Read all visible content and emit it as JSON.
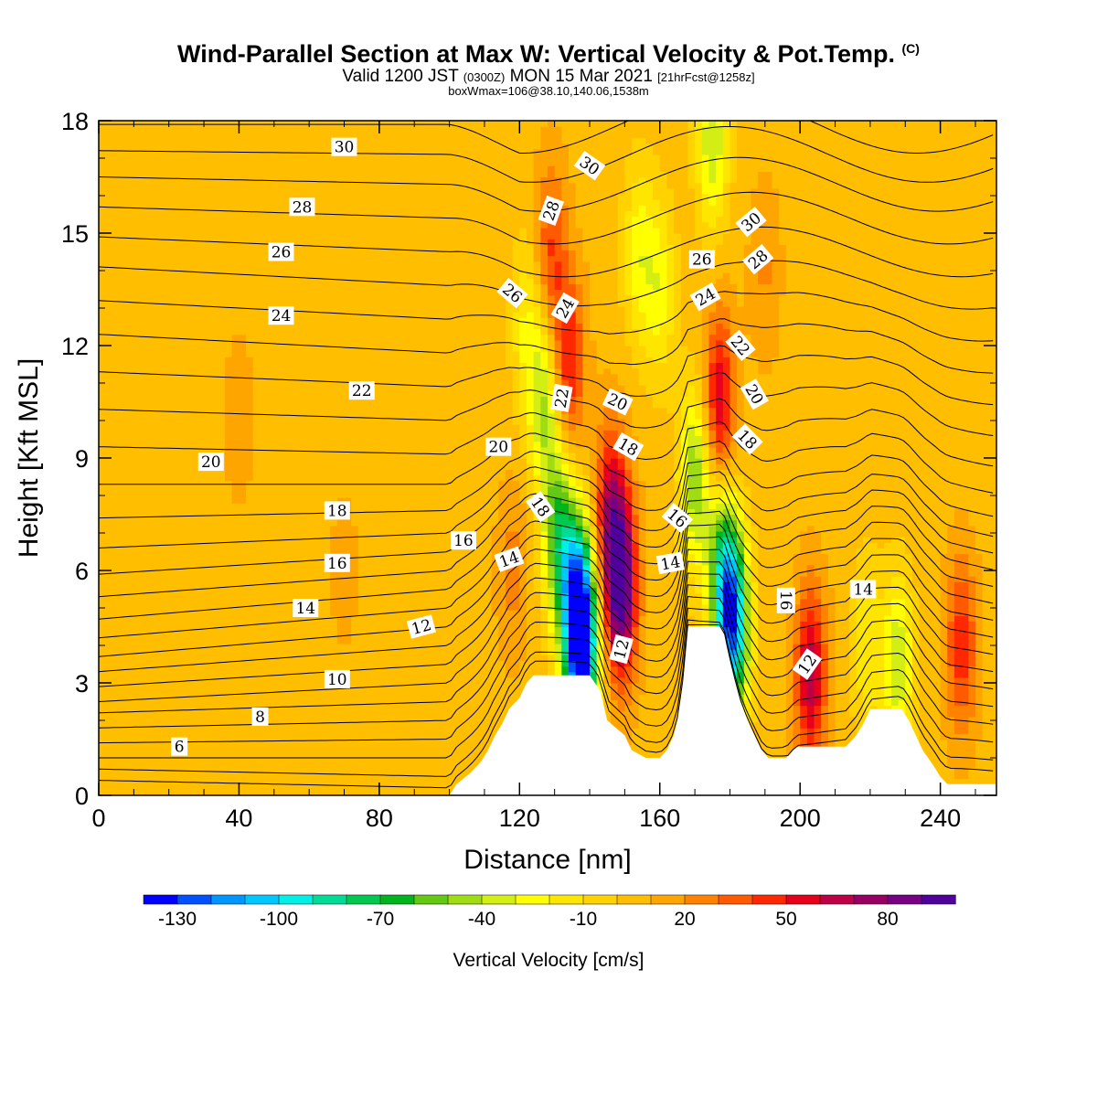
{
  "title": {
    "main": "Wind-Parallel Section at Max W: Vertical Velocity & Pot.Temp.",
    "copyright": "(C)",
    "valid_prefix": "Valid 1200 JST",
    "valid_utc": "(0300Z)",
    "valid_date": "MON 15 Mar 2021",
    "forecast": "[21hrFcst@1258z]",
    "box_max": "boxWmax=106@38.10,140.06,1538m"
  },
  "chart_data": {
    "type": "heatmap",
    "xlabel": "Distance [nm]",
    "ylabel": "Height [Kft MSL]",
    "xlim": [
      0,
      256
    ],
    "ylim": [
      0,
      18
    ],
    "xticks": [
      0,
      40,
      80,
      120,
      160,
      200,
      240
    ],
    "yticks": [
      0,
      3,
      6,
      9,
      12,
      15,
      18
    ],
    "colorbar": {
      "label": "Vertical Velocity [cm/s]",
      "levels": [
        -140,
        -130,
        -120,
        -110,
        -100,
        -90,
        -80,
        -70,
        -60,
        -50,
        -40,
        -30,
        -20,
        -10,
        0,
        10,
        20,
        30,
        40,
        50,
        60,
        70,
        80,
        90
      ],
      "tick_labels": [
        "-130",
        "-100",
        "-70",
        "-40",
        "-10",
        "20",
        "50",
        "80"
      ],
      "colors": [
        "#0000ff",
        "#0050ff",
        "#0096ff",
        "#00c8ff",
        "#00f0e6",
        "#00dc96",
        "#00c850",
        "#00b41e",
        "#64c814",
        "#a0dc14",
        "#d2ee14",
        "#ffff00",
        "#ffe600",
        "#ffd200",
        "#ffbe00",
        "#ffa500",
        "#ff8200",
        "#ff5a00",
        "#ff2800",
        "#e6001e",
        "#be0046",
        "#960064",
        "#780082",
        "#50009b"
      ]
    },
    "terrain": [
      [
        0,
        0
      ],
      [
        100,
        0
      ],
      [
        102,
        0.3
      ],
      [
        106,
        0.6
      ],
      [
        109,
        0.9
      ],
      [
        111,
        1.2
      ],
      [
        113,
        1.6
      ],
      [
        115,
        1.9
      ],
      [
        117,
        2.3
      ],
      [
        120,
        2.6
      ],
      [
        122,
        3.0
      ],
      [
        124,
        3.2
      ],
      [
        140,
        3.2
      ],
      [
        143,
        2.8
      ],
      [
        144,
        2.4
      ],
      [
        145,
        2.0
      ],
      [
        150,
        1.6
      ],
      [
        152,
        1.2
      ],
      [
        156,
        1.0
      ],
      [
        160,
        1.0
      ],
      [
        162,
        1.2
      ],
      [
        164,
        1.6
      ],
      [
        165,
        2.0
      ],
      [
        166,
        2.6
      ],
      [
        167,
        3.4
      ],
      [
        168,
        4.5
      ],
      [
        178,
        4.5
      ],
      [
        179,
        4.0
      ],
      [
        181,
        3.2
      ],
      [
        183,
        2.5
      ],
      [
        185,
        2.0
      ],
      [
        187,
        1.6
      ],
      [
        189,
        1.2
      ],
      [
        191,
        1.0
      ],
      [
        196,
        1.0
      ],
      [
        199,
        1.3
      ],
      [
        213,
        1.3
      ],
      [
        216,
        1.6
      ],
      [
        218,
        1.9
      ],
      [
        220,
        2.3
      ],
      [
        229,
        2.3
      ],
      [
        231,
        2.0
      ],
      [
        233,
        1.6
      ],
      [
        235,
        1.2
      ],
      [
        238,
        0.8
      ],
      [
        240,
        0.5
      ],
      [
        242,
        0.3
      ],
      [
        256,
        0.3
      ]
    ],
    "w_features": [
      {
        "x": 138,
        "z": 3.9,
        "w": -125
      },
      {
        "x": 136,
        "z": 5.2,
        "w": -90
      },
      {
        "x": 131,
        "z": 7.0,
        "w": -65
      },
      {
        "x": 127,
        "z": 10.5,
        "w": -45
      },
      {
        "x": 122,
        "z": 12.5,
        "w": -25
      },
      {
        "x": 149,
        "z": 5.5,
        "w": 88
      },
      {
        "x": 146,
        "z": 7.5,
        "w": 55
      },
      {
        "x": 134,
        "z": 11.5,
        "w": 45
      },
      {
        "x": 129,
        "z": 14.5,
        "w": 35
      },
      {
        "x": 181,
        "z": 4.5,
        "w": -110
      },
      {
        "x": 178,
        "z": 6.0,
        "w": -70
      },
      {
        "x": 170,
        "z": 8.5,
        "w": -55
      },
      {
        "x": 160,
        "z": 13.5,
        "w": -30
      },
      {
        "x": 175,
        "z": 17.5,
        "w": -45
      },
      {
        "x": 177,
        "z": 10.5,
        "w": 55
      },
      {
        "x": 203,
        "z": 3.2,
        "w": 60
      },
      {
        "x": 219,
        "z": 4.0,
        "w": -25
      },
      {
        "x": 228,
        "z": 3.5,
        "w": -45
      },
      {
        "x": 246,
        "z": 4.0,
        "w": 40
      },
      {
        "x": 154,
        "z": 14.5,
        "w": -30
      },
      {
        "x": 190,
        "z": 14.0,
        "w": 15
      },
      {
        "x": 40,
        "z": 10.0,
        "w": 10
      },
      {
        "x": 70,
        "z": 6.0,
        "w": 8
      },
      {
        "x": 118,
        "z": 6.0,
        "w": 18
      }
    ],
    "isentropes": [
      {
        "theta": 4,
        "z0": 0.4,
        "z100": 0.2
      },
      {
        "theta": 5,
        "z0": 0.7,
        "z100": 0.5
      },
      {
        "theta": 6,
        "z0": 1.0,
        "z100": 1.0
      },
      {
        "theta": 7,
        "z0": 1.4,
        "z100": 1.5
      },
      {
        "theta": 8,
        "z0": 1.8,
        "z100": 2.0
      },
      {
        "theta": 9,
        "z0": 2.2,
        "z100": 2.5
      },
      {
        "theta": 10,
        "z0": 2.5,
        "z100": 3.0
      },
      {
        "theta": 11,
        "z0": 2.9,
        "z100": 3.5
      },
      {
        "theta": 12,
        "z0": 3.3,
        "z100": 4.0
      },
      {
        "theta": 13,
        "z0": 3.7,
        "z100": 4.5
      },
      {
        "theta": 14,
        "z0": 4.2,
        "z100": 5.0
      },
      {
        "theta": 15,
        "z0": 4.7,
        "z100": 5.5
      },
      {
        "theta": 16,
        "z0": 5.3,
        "z100": 6.0
      },
      {
        "theta": 17,
        "z0": 5.9,
        "z100": 6.5
      },
      {
        "theta": 18,
        "z0": 6.6,
        "z100": 7.0
      },
      {
        "theta": 19,
        "z0": 7.4,
        "z100": 7.6
      },
      {
        "theta": 20,
        "z0": 8.3,
        "z100": 8.3
      },
      {
        "theta": 21,
        "z0": 9.3,
        "z100": 9.1
      },
      {
        "theta": 22,
        "z0": 10.3,
        "z100": 10.0
      },
      {
        "theta": 23,
        "z0": 11.3,
        "z100": 10.9
      },
      {
        "theta": 24,
        "z0": 12.3,
        "z100": 11.8
      },
      {
        "theta": 25,
        "z0": 13.2,
        "z100": 12.7
      },
      {
        "theta": 26,
        "z0": 14.1,
        "z100": 13.6
      },
      {
        "theta": 27,
        "z0": 14.9,
        "z100": 14.5
      },
      {
        "theta": 28,
        "z0": 15.7,
        "z100": 15.4
      },
      {
        "theta": 29,
        "z0": 16.5,
        "z100": 16.3
      },
      {
        "theta": 30,
        "z0": 17.2,
        "z100": 17.1
      },
      {
        "theta": 31,
        "z0": 17.9,
        "z100": 17.9
      }
    ],
    "contour_labels": [
      {
        "text": "30",
        "x": 70,
        "z": 17.3,
        "rot": 0
      },
      {
        "text": "28",
        "x": 58,
        "z": 15.7,
        "rot": 0
      },
      {
        "text": "26",
        "x": 52,
        "z": 14.5,
        "rot": 0
      },
      {
        "text": "24",
        "x": 52,
        "z": 12.8,
        "rot": 0
      },
      {
        "text": "22",
        "x": 75,
        "z": 10.8,
        "rot": 0
      },
      {
        "text": "20",
        "x": 32,
        "z": 8.9,
        "rot": 0
      },
      {
        "text": "18",
        "x": 68,
        "z": 7.6,
        "rot": 0
      },
      {
        "text": "16",
        "x": 68,
        "z": 6.2,
        "rot": 0
      },
      {
        "text": "14",
        "x": 59,
        "z": 5.0,
        "rot": 0
      },
      {
        "text": "12",
        "x": 92,
        "z": 4.5,
        "rot": -15
      },
      {
        "text": "10",
        "x": 68,
        "z": 3.1,
        "rot": 0
      },
      {
        "text": "8",
        "x": 46,
        "z": 2.1,
        "rot": 0
      },
      {
        "text": "6",
        "x": 23,
        "z": 1.3,
        "rot": 0
      },
      {
        "text": "20",
        "x": 114,
        "z": 9.3,
        "rot": 0
      },
      {
        "text": "16",
        "x": 104,
        "z": 6.8,
        "rot": 0
      },
      {
        "text": "14",
        "x": 117,
        "z": 6.3,
        "rot": -20
      },
      {
        "text": "18",
        "x": 126,
        "z": 7.7,
        "rot": 55
      },
      {
        "text": "22",
        "x": 132,
        "z": 10.6,
        "rot": -80
      },
      {
        "text": "24",
        "x": 133,
        "z": 13.0,
        "rot": -60
      },
      {
        "text": "26",
        "x": 118,
        "z": 13.4,
        "rot": 40
      },
      {
        "text": "28",
        "x": 129,
        "z": 15.6,
        "rot": -70
      },
      {
        "text": "30",
        "x": 140,
        "z": 16.8,
        "rot": 35
      },
      {
        "text": "20",
        "x": 148,
        "z": 10.5,
        "rot": 25
      },
      {
        "text": "18",
        "x": 151,
        "z": 9.3,
        "rot": 30
      },
      {
        "text": "16",
        "x": 165,
        "z": 7.4,
        "rot": 40
      },
      {
        "text": "14",
        "x": 163,
        "z": 6.2,
        "rot": -10
      },
      {
        "text": "12",
        "x": 149,
        "z": 3.9,
        "rot": -75
      },
      {
        "text": "26",
        "x": 172,
        "z": 14.3,
        "rot": 0
      },
      {
        "text": "24",
        "x": 173,
        "z": 13.3,
        "rot": -30
      },
      {
        "text": "22",
        "x": 183,
        "z": 12.0,
        "rot": 50
      },
      {
        "text": "20",
        "x": 187,
        "z": 10.7,
        "rot": 60
      },
      {
        "text": "18",
        "x": 185,
        "z": 9.5,
        "rot": 45
      },
      {
        "text": "30",
        "x": 186,
        "z": 15.3,
        "rot": -40
      },
      {
        "text": "28",
        "x": 188,
        "z": 14.3,
        "rot": -40
      },
      {
        "text": "16",
        "x": 196,
        "z": 5.2,
        "rot": 90
      },
      {
        "text": "14",
        "x": 218,
        "z": 5.5,
        "rot": 0
      },
      {
        "text": "12",
        "x": 202,
        "z": 3.5,
        "rot": -55
      }
    ]
  }
}
